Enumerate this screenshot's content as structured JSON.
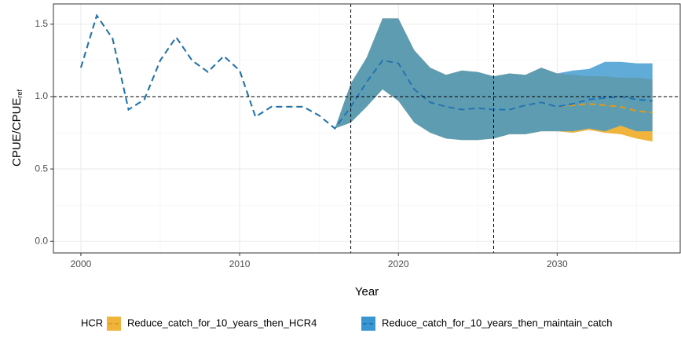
{
  "chart_data": {
    "type": "ribbon-line",
    "xlabel": "Year",
    "ylabel": "CPUE/CPUE",
    "ylabel_subscript": "ref",
    "legend_title": "HCR",
    "x": [
      2000,
      2001,
      2002,
      2003,
      2004,
      2005,
      2006,
      2007,
      2008,
      2009,
      2010,
      2011,
      2012,
      2013,
      2014,
      2015,
      2016,
      2017,
      2018,
      2019,
      2020,
      2021,
      2022,
      2023,
      2024,
      2025,
      2026,
      2027,
      2028,
      2029,
      2030,
      2031,
      2032,
      2033,
      2034,
      2035,
      2036
    ],
    "series": [
      {
        "name": "Reduce_catch_for_10_years_then_HCR4",
        "color": "#f0b43c",
        "line_color": "#e09a1a",
        "values": [
          1.2,
          1.56,
          1.4,
          0.91,
          0.98,
          1.25,
          1.41,
          1.25,
          1.17,
          1.28,
          1.18,
          0.86,
          0.93,
          0.93,
          0.93,
          0.87,
          0.78,
          0.93,
          1.1,
          1.25,
          1.23,
          1.05,
          0.96,
          0.93,
          0.91,
          0.92,
          0.91,
          0.91,
          0.94,
          0.96,
          0.93,
          0.94,
          0.95,
          0.94,
          0.93,
          0.9,
          0.89
        ],
        "lower": [
          null,
          null,
          null,
          null,
          null,
          null,
          null,
          null,
          null,
          null,
          null,
          null,
          null,
          null,
          null,
          null,
          0.78,
          0.82,
          0.93,
          1.05,
          0.97,
          0.82,
          0.75,
          0.71,
          0.7,
          0.7,
          0.71,
          0.74,
          0.74,
          0.76,
          0.76,
          0.75,
          0.77,
          0.75,
          0.74,
          0.71,
          0.69
        ],
        "upper": [
          null,
          null,
          null,
          null,
          null,
          null,
          null,
          null,
          null,
          null,
          null,
          null,
          null,
          null,
          null,
          null,
          0.78,
          1.09,
          1.27,
          1.54,
          1.54,
          1.32,
          1.2,
          1.15,
          1.18,
          1.17,
          1.14,
          1.16,
          1.15,
          1.2,
          1.16,
          1.15,
          1.14,
          1.14,
          1.13,
          1.13,
          1.12
        ]
      },
      {
        "name": "Reduce_catch_for_10_years_then_maintain_catch",
        "color": "#3a96d0",
        "line_color": "#1b75bb",
        "values": [
          1.2,
          1.56,
          1.4,
          0.91,
          0.98,
          1.25,
          1.41,
          1.25,
          1.17,
          1.28,
          1.18,
          0.86,
          0.93,
          0.93,
          0.93,
          0.87,
          0.78,
          0.93,
          1.1,
          1.25,
          1.23,
          1.05,
          0.96,
          0.93,
          0.91,
          0.92,
          0.91,
          0.91,
          0.94,
          0.96,
          0.93,
          0.95,
          0.98,
          0.99,
          1.0,
          0.98,
          0.97
        ],
        "lower": [
          null,
          null,
          null,
          null,
          null,
          null,
          null,
          null,
          null,
          null,
          null,
          null,
          null,
          null,
          null,
          null,
          0.78,
          0.82,
          0.93,
          1.05,
          0.97,
          0.82,
          0.75,
          0.71,
          0.7,
          0.7,
          0.71,
          0.74,
          0.74,
          0.76,
          0.76,
          0.76,
          0.78,
          0.76,
          0.8,
          0.76,
          0.76
        ],
        "upper": [
          null,
          null,
          null,
          null,
          null,
          null,
          null,
          null,
          null,
          null,
          null,
          null,
          null,
          null,
          null,
          null,
          0.78,
          1.09,
          1.27,
          1.54,
          1.54,
          1.32,
          1.2,
          1.15,
          1.18,
          1.17,
          1.14,
          1.16,
          1.15,
          1.2,
          1.16,
          1.18,
          1.19,
          1.24,
          1.24,
          1.23,
          1.23
        ]
      }
    ],
    "xlim": [
      1998.27,
      2037.75
    ],
    "ylim": [
      -0.08,
      1.64
    ],
    "xticks": [
      2000,
      2010,
      2020,
      2030
    ],
    "yticks": [
      {
        "value": 0,
        "label": "0.0"
      },
      0.5,
      {
        "value": 1,
        "label": "1.0"
      },
      1.5
    ],
    "xminor": [
      2005,
      2015,
      2025,
      2035
    ],
    "yminor": [
      0.25,
      0.75,
      1.25
    ],
    "hlines": [
      1
    ],
    "vlines": [
      2017,
      2026
    ],
    "grid": true,
    "legend_position": "bottom"
  }
}
